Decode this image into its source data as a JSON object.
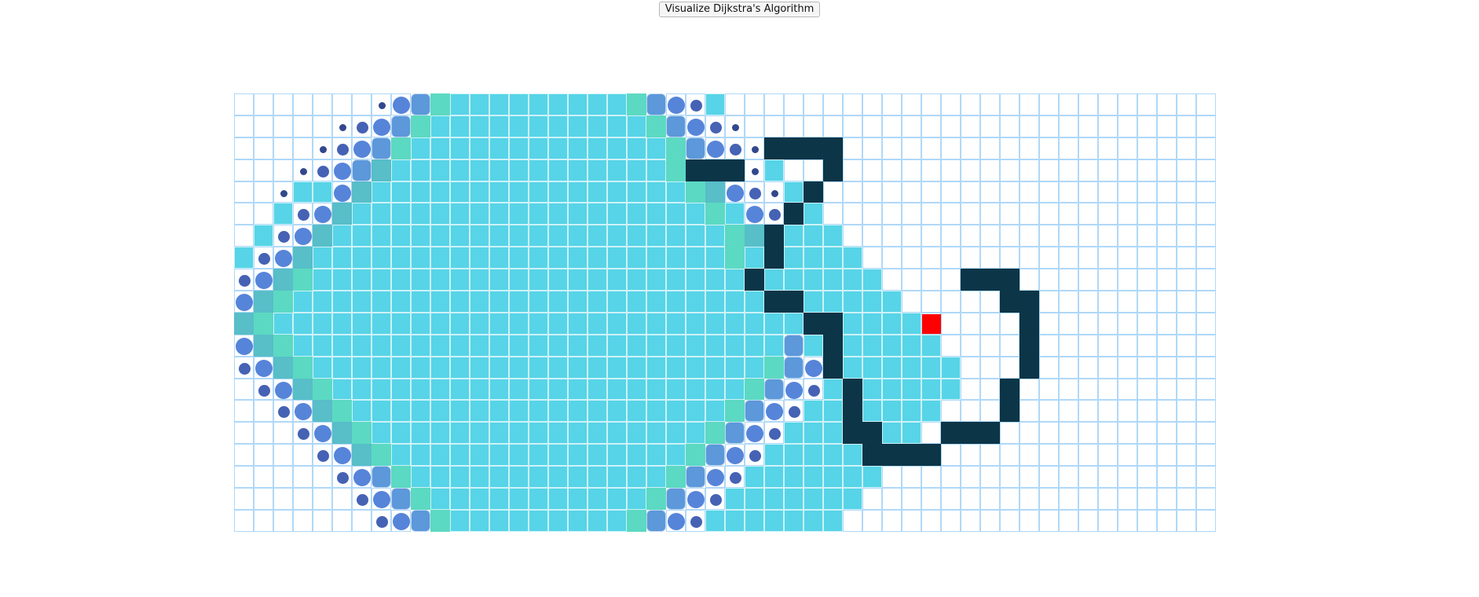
{
  "toolbar": {
    "button_label": "Visualize Dijkstra's Algorithm"
  },
  "grid": {
    "rows": 20,
    "cols": 50,
    "target": [
      10,
      35
    ]
  },
  "colors": {
    "node_border": "#afd8f8",
    "wall": "#0c3547",
    "target": "#ff0000",
    "visited": "#5acde0",
    "visited_edge": "#5cd9c2",
    "visited_teal": "#58bec8",
    "visited_square": "#5c98da",
    "visited_circle": "#5684d9",
    "visited_dot": "#4562b4"
  },
  "walls": [
    [
      2,
      27
    ],
    [
      2,
      28
    ],
    [
      2,
      29
    ],
    [
      2,
      30
    ],
    [
      3,
      23
    ],
    [
      3,
      24
    ],
    [
      3,
      25
    ],
    [
      3,
      30
    ],
    [
      4,
      29
    ],
    [
      5,
      28
    ],
    [
      6,
      27
    ],
    [
      7,
      27
    ],
    [
      8,
      26
    ],
    [
      8,
      37
    ],
    [
      8,
      38
    ],
    [
      8,
      39
    ],
    [
      9,
      27
    ],
    [
      9,
      28
    ],
    [
      9,
      39
    ],
    [
      9,
      40
    ],
    [
      10,
      29
    ],
    [
      10,
      30
    ],
    [
      10,
      40
    ],
    [
      11,
      30
    ],
    [
      11,
      40
    ],
    [
      12,
      30
    ],
    [
      12,
      40
    ],
    [
      13,
      31
    ],
    [
      13,
      39
    ],
    [
      14,
      31
    ],
    [
      14,
      39
    ],
    [
      15,
      31
    ],
    [
      15,
      32
    ],
    [
      15,
      36
    ],
    [
      15,
      37
    ],
    [
      15,
      38
    ],
    [
      16,
      32
    ],
    [
      16,
      33
    ],
    [
      16,
      34
    ],
    [
      16,
      35
    ]
  ],
  "visited_span": [
    [
      7,
      24
    ],
    [
      6,
      25
    ],
    [
      5,
      26
    ],
    [
      4,
      27
    ],
    [
      3,
      28
    ],
    [
      2,
      29
    ],
    [
      1,
      30
    ],
    [
      0,
      31
    ],
    [
      0,
      32
    ],
    [
      0,
      33
    ],
    [
      0,
      34
    ],
    [
      0,
      35
    ],
    [
      0,
      36
    ],
    [
      1,
      36
    ],
    [
      2,
      35
    ],
    [
      3,
      34
    ],
    [
      4,
      33
    ],
    [
      5,
      32
    ],
    [
      6,
      31
    ],
    [
      7,
      30
    ]
  ],
  "frontier": {
    "edge": [
      [
        0,
        10
      ],
      [
        0,
        20
      ],
      [
        1,
        9
      ],
      [
        1,
        21
      ],
      [
        2,
        8
      ],
      [
        2,
        22
      ],
      [
        3,
        22
      ],
      [
        4,
        23
      ],
      [
        5,
        24
      ],
      [
        6,
        25
      ],
      [
        7,
        25
      ],
      [
        8,
        3
      ],
      [
        9,
        2
      ],
      [
        10,
        1
      ],
      [
        11,
        2
      ],
      [
        12,
        3
      ],
      [
        12,
        27
      ],
      [
        13,
        4
      ],
      [
        13,
        26
      ],
      [
        14,
        5
      ],
      [
        14,
        25
      ],
      [
        15,
        6
      ],
      [
        15,
        24
      ],
      [
        16,
        7
      ],
      [
        16,
        23
      ],
      [
        17,
        8
      ],
      [
        17,
        22
      ],
      [
        18,
        9
      ],
      [
        18,
        21
      ],
      [
        19,
        10
      ],
      [
        19,
        20
      ]
    ],
    "teal": [
      [
        3,
        7
      ],
      [
        4,
        6
      ],
      [
        4,
        24
      ],
      [
        5,
        5
      ],
      [
        6,
        4
      ],
      [
        6,
        26
      ],
      [
        7,
        3
      ],
      [
        8,
        2
      ],
      [
        9,
        1
      ],
      [
        10,
        0
      ],
      [
        11,
        1
      ],
      [
        12,
        2
      ],
      [
        13,
        3
      ],
      [
        14,
        4
      ],
      [
        15,
        5
      ],
      [
        16,
        6
      ]
    ],
    "square": [
      [
        0,
        9
      ],
      [
        0,
        21
      ],
      [
        1,
        8
      ],
      [
        1,
        22
      ],
      [
        2,
        7
      ],
      [
        2,
        23
      ],
      [
        3,
        6
      ],
      [
        10,
        29
      ],
      [
        11,
        28
      ],
      [
        12,
        28
      ],
      [
        13,
        27
      ],
      [
        14,
        26
      ],
      [
        15,
        25
      ],
      [
        16,
        24
      ],
      [
        17,
        7
      ],
      [
        17,
        23
      ],
      [
        18,
        8
      ],
      [
        18,
        22
      ],
      [
        19,
        9
      ],
      [
        19,
        21
      ]
    ],
    "circle": [
      [
        0,
        8
      ],
      [
        0,
        22
      ],
      [
        1,
        7
      ],
      [
        1,
        23
      ],
      [
        2,
        6
      ],
      [
        2,
        24
      ],
      [
        3,
        5
      ],
      [
        4,
        5
      ],
      [
        4,
        25
      ],
      [
        5,
        4
      ],
      [
        5,
        26
      ],
      [
        6,
        3
      ],
      [
        7,
        2
      ],
      [
        8,
        1
      ],
      [
        9,
        0
      ],
      [
        11,
        0
      ],
      [
        12,
        1
      ],
      [
        12,
        29
      ],
      [
        13,
        2
      ],
      [
        13,
        28
      ],
      [
        14,
        3
      ],
      [
        14,
        27
      ],
      [
        15,
        4
      ],
      [
        15,
        26
      ],
      [
        16,
        5
      ],
      [
        16,
        25
      ],
      [
        17,
        6
      ],
      [
        17,
        24
      ],
      [
        18,
        7
      ],
      [
        18,
        23
      ],
      [
        19,
        8
      ],
      [
        19,
        22
      ]
    ],
    "dot": [
      [
        0,
        23
      ],
      [
        1,
        6
      ],
      [
        1,
        24
      ],
      [
        2,
        5
      ],
      [
        2,
        25
      ],
      [
        3,
        4
      ],
      [
        4,
        26
      ],
      [
        5,
        3
      ],
      [
        5,
        27
      ],
      [
        6,
        2
      ],
      [
        7,
        1
      ],
      [
        8,
        0
      ],
      [
        12,
        0
      ],
      [
        13,
        1
      ],
      [
        13,
        29
      ],
      [
        14,
        2
      ],
      [
        14,
        28
      ],
      [
        15,
        3
      ],
      [
        15,
        27
      ],
      [
        16,
        4
      ],
      [
        16,
        26
      ],
      [
        17,
        5
      ],
      [
        17,
        25
      ],
      [
        18,
        6
      ],
      [
        18,
        24
      ],
      [
        19,
        7
      ],
      [
        19,
        23
      ]
    ],
    "small": [
      [
        0,
        7
      ],
      [
        1,
        5
      ],
      [
        1,
        25
      ],
      [
        2,
        4
      ],
      [
        2,
        26
      ],
      [
        3,
        3
      ],
      [
        3,
        26
      ],
      [
        4,
        2
      ],
      [
        4,
        27
      ]
    ]
  }
}
